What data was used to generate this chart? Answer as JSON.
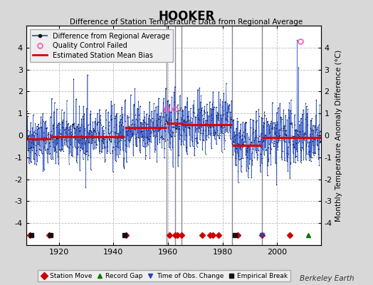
{
  "title": "HOOKER",
  "subtitle": "Difference of Station Temperature Data from Regional Average",
  "ylabel": "Monthly Temperature Anomaly Difference (°C)",
  "credit": "Berkeley Earth",
  "xlim": [
    1908,
    2016
  ],
  "ylim": [
    -5,
    5
  ],
  "yticks": [
    -4,
    -3,
    -2,
    -1,
    0,
    1,
    2,
    3,
    4
  ],
  "xticks": [
    1920,
    1940,
    1960,
    1980,
    2000
  ],
  "background_color": "#d8d8d8",
  "plot_bg_color": "#ffffff",
  "grid_color": "#bbbbbb",
  "line_color": "#4466cc",
  "dot_color": "#111111",
  "bias_color": "#dd0000",
  "bias_linewidth": 2.2,
  "vertical_lines": [
    1959.5,
    1962.5,
    1965.0,
    1983.5,
    1994.5
  ],
  "vertical_line_color": "#888899",
  "station_moves": [
    1909.5,
    1916.5,
    1944.5,
    1960.5,
    1962.5,
    1963.5,
    1965.0,
    1972.5,
    1975.5,
    1976.5,
    1978.5,
    1985.5,
    1994.5,
    2004.5
  ],
  "record_gaps": [
    2011.5
  ],
  "obs_changes": [
    1994.5
  ],
  "empirical_breaks": [
    1910.0,
    1917.0,
    1944.0,
    1984.5
  ],
  "bias_segments": [
    {
      "x": [
        1908,
        1917
      ],
      "y": [
        -0.15,
        -0.15
      ]
    },
    {
      "x": [
        1917,
        1944
      ],
      "y": [
        -0.05,
        -0.05
      ]
    },
    {
      "x": [
        1944,
        1959.5
      ],
      "y": [
        0.35,
        0.35
      ]
    },
    {
      "x": [
        1959.5,
        1962.5
      ],
      "y": [
        0.55,
        0.55
      ]
    },
    {
      "x": [
        1962.5,
        1965.0
      ],
      "y": [
        0.55,
        0.55
      ]
    },
    {
      "x": [
        1965.0,
        1983.5
      ],
      "y": [
        0.5,
        0.5
      ]
    },
    {
      "x": [
        1983.5,
        1994.5
      ],
      "y": [
        -0.45,
        -0.45
      ]
    },
    {
      "x": [
        1994.5,
        2016
      ],
      "y": [
        -0.1,
        -0.1
      ]
    }
  ],
  "qc_failed_years": [
    1959.5,
    1962.5,
    2008.5
  ],
  "qc_failed_vals": [
    1.2,
    1.2,
    4.3
  ],
  "marker_y": -4.55,
  "seed": 42
}
